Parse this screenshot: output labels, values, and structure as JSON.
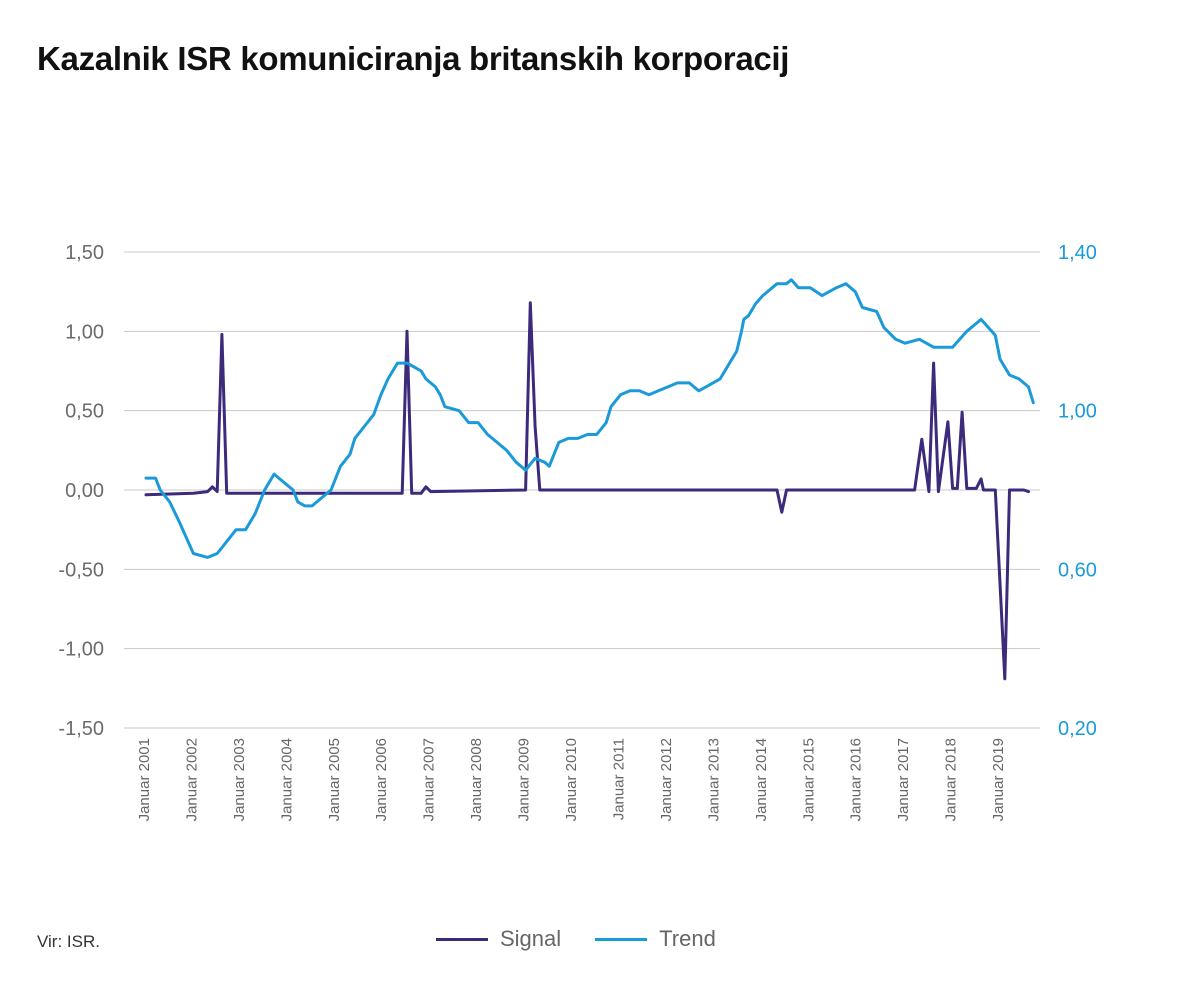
{
  "title": "Kazalnik ISR komuniciranja britanskih korporacij",
  "source": "Vir: ISR.",
  "colors": {
    "signal": "#3d2a7a",
    "trend": "#1a9ad9",
    "grid": "#c8c8c8",
    "axis_text": "#6b6b6b"
  },
  "legend": {
    "signal_label": "Signal",
    "trend_label": "Trend"
  },
  "chart_data": {
    "type": "line",
    "title": "Kazalnik ISR komuniciranja britanskih korporacij",
    "left_axis": {
      "range": [
        -1.5,
        1.5
      ],
      "ticks": [
        1.5,
        1.0,
        0.5,
        0.0,
        -0.5,
        -1.0,
        -1.5
      ],
      "tick_labels": [
        "1,50",
        "1,00",
        "0,50",
        "0,00",
        "-0,50",
        "-1,00",
        "-1,50"
      ]
    },
    "right_axis": {
      "range": [
        0.2,
        1.4
      ],
      "ticks": [
        1.4,
        1.0,
        0.6,
        0.2
      ],
      "tick_labels": [
        "1,40",
        "1,00",
        "0,60",
        "0,20"
      ]
    },
    "x_axis": {
      "range": [
        2001.0,
        2019.8
      ],
      "ticks": [
        2001,
        2002,
        2003,
        2004,
        2005,
        2006,
        2007,
        2008,
        2009,
        2010,
        2011,
        2012,
        2013,
        2014,
        2015,
        2016,
        2017,
        2018,
        2019
      ],
      "tick_labels": [
        "Januar 2001",
        "Januar 2002",
        "Januar 2003",
        "Januar 2004",
        "Januar 2005",
        "Januar 2006",
        "Januar 2007",
        "Januar 2008",
        "Januar 2009",
        "Januar 2010",
        "Januar 2011",
        "Januar 2012",
        "Januar 2013",
        "Januar 2014",
        "Januar 2015",
        "Januar 2016",
        "Januar 2017",
        "Januar 2018",
        "Januar 2019"
      ]
    },
    "grid": true,
    "legend_position": "bottom-center",
    "series": [
      {
        "name": "Signal",
        "axis": "left",
        "points": [
          [
            2001.0,
            -0.03
          ],
          [
            2002.0,
            -0.02
          ],
          [
            2002.3,
            -0.01
          ],
          [
            2002.4,
            0.02
          ],
          [
            2002.5,
            -0.01
          ],
          [
            2002.6,
            0.98
          ],
          [
            2002.7,
            -0.02
          ],
          [
            2006.4,
            -0.02
          ],
          [
            2006.5,
            1.0
          ],
          [
            2006.6,
            -0.02
          ],
          [
            2006.8,
            -0.02
          ],
          [
            2006.9,
            0.02
          ],
          [
            2007.0,
            -0.01
          ],
          [
            2009.0,
            0.0
          ],
          [
            2009.1,
            1.18
          ],
          [
            2009.2,
            0.4
          ],
          [
            2009.3,
            0.0
          ],
          [
            2014.3,
            0.0
          ],
          [
            2014.4,
            -0.14
          ],
          [
            2014.5,
            0.0
          ],
          [
            2017.2,
            0.0
          ],
          [
            2017.35,
            0.32
          ],
          [
            2017.5,
            -0.01
          ],
          [
            2017.6,
            0.8
          ],
          [
            2017.7,
            -0.01
          ],
          [
            2017.9,
            0.43
          ],
          [
            2018.0,
            0.01
          ],
          [
            2018.1,
            0.01
          ],
          [
            2018.2,
            0.49
          ],
          [
            2018.3,
            0.01
          ],
          [
            2018.5,
            0.01
          ],
          [
            2018.6,
            0.07
          ],
          [
            2018.65,
            0.0
          ],
          [
            2018.9,
            0.0
          ],
          [
            2019.1,
            -1.19
          ],
          [
            2019.2,
            0.0
          ],
          [
            2019.5,
            0.0
          ],
          [
            2019.6,
            -0.01
          ]
        ]
      },
      {
        "name": "Trend",
        "axis": "right",
        "points": [
          [
            2001.0,
            0.83
          ],
          [
            2001.2,
            0.83
          ],
          [
            2001.3,
            0.8
          ],
          [
            2001.5,
            0.77
          ],
          [
            2001.7,
            0.72
          ],
          [
            2002.0,
            0.64
          ],
          [
            2002.3,
            0.63
          ],
          [
            2002.5,
            0.64
          ],
          [
            2002.7,
            0.67
          ],
          [
            2002.9,
            0.7
          ],
          [
            2003.1,
            0.7
          ],
          [
            2003.3,
            0.74
          ],
          [
            2003.5,
            0.8
          ],
          [
            2003.7,
            0.84
          ],
          [
            2003.9,
            0.82
          ],
          [
            2004.1,
            0.8
          ],
          [
            2004.2,
            0.77
          ],
          [
            2004.35,
            0.76
          ],
          [
            2004.5,
            0.76
          ],
          [
            2004.7,
            0.78
          ],
          [
            2004.9,
            0.8
          ],
          [
            2005.1,
            0.86
          ],
          [
            2005.3,
            0.89
          ],
          [
            2005.4,
            0.93
          ],
          [
            2005.6,
            0.96
          ],
          [
            2005.8,
            0.99
          ],
          [
            2005.95,
            1.04
          ],
          [
            2006.1,
            1.08
          ],
          [
            2006.3,
            1.12
          ],
          [
            2006.5,
            1.12
          ],
          [
            2006.65,
            1.11
          ],
          [
            2006.8,
            1.1
          ],
          [
            2006.9,
            1.08
          ],
          [
            2007.1,
            1.06
          ],
          [
            2007.2,
            1.04
          ],
          [
            2007.3,
            1.01
          ],
          [
            2007.6,
            1.0
          ],
          [
            2007.8,
            0.97
          ],
          [
            2008.0,
            0.97
          ],
          [
            2008.2,
            0.94
          ],
          [
            2008.4,
            0.92
          ],
          [
            2008.6,
            0.9
          ],
          [
            2008.8,
            0.87
          ],
          [
            2009.0,
            0.85
          ],
          [
            2009.2,
            0.88
          ],
          [
            2009.4,
            0.87
          ],
          [
            2009.5,
            0.86
          ],
          [
            2009.6,
            0.89
          ],
          [
            2009.7,
            0.92
          ],
          [
            2009.9,
            0.93
          ],
          [
            2010.1,
            0.93
          ],
          [
            2010.3,
            0.94
          ],
          [
            2010.5,
            0.94
          ],
          [
            2010.7,
            0.97
          ],
          [
            2010.8,
            1.01
          ],
          [
            2011.0,
            1.04
          ],
          [
            2011.2,
            1.05
          ],
          [
            2011.4,
            1.05
          ],
          [
            2011.6,
            1.04
          ],
          [
            2011.8,
            1.05
          ],
          [
            2012.0,
            1.06
          ],
          [
            2012.2,
            1.07
          ],
          [
            2012.45,
            1.07
          ],
          [
            2012.55,
            1.06
          ],
          [
            2012.65,
            1.05
          ],
          [
            2012.8,
            1.06
          ],
          [
            2012.95,
            1.07
          ],
          [
            2013.1,
            1.08
          ],
          [
            2013.25,
            1.11
          ],
          [
            2013.45,
            1.15
          ],
          [
            2013.55,
            1.2
          ],
          [
            2013.6,
            1.23
          ],
          [
            2013.7,
            1.24
          ],
          [
            2013.85,
            1.27
          ],
          [
            2014.0,
            1.29
          ],
          [
            2014.3,
            1.32
          ],
          [
            2014.5,
            1.32
          ],
          [
            2014.6,
            1.33
          ],
          [
            2014.75,
            1.31
          ],
          [
            2015.0,
            1.31
          ],
          [
            2015.25,
            1.29
          ],
          [
            2015.55,
            1.31
          ],
          [
            2015.75,
            1.32
          ],
          [
            2015.95,
            1.3
          ],
          [
            2016.1,
            1.26
          ],
          [
            2016.4,
            1.25
          ],
          [
            2016.55,
            1.21
          ],
          [
            2016.8,
            1.18
          ],
          [
            2017.0,
            1.17
          ],
          [
            2017.3,
            1.18
          ],
          [
            2017.6,
            1.16
          ],
          [
            2018.0,
            1.16
          ],
          [
            2018.3,
            1.2
          ],
          [
            2018.6,
            1.23
          ],
          [
            2018.9,
            1.19
          ],
          [
            2019.0,
            1.13
          ],
          [
            2019.2,
            1.09
          ],
          [
            2019.4,
            1.08
          ],
          [
            2019.6,
            1.06
          ],
          [
            2019.7,
            1.02
          ]
        ]
      }
    ]
  }
}
